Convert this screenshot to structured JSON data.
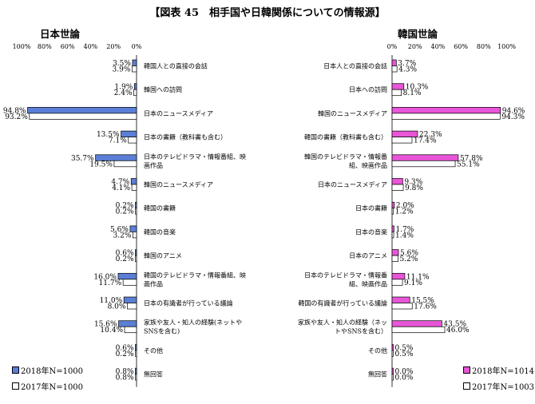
{
  "title": "【図表 45　相手国や日韓関係についての情報源】",
  "left_panel_title": "日本世論",
  "right_panel_title": "韓国世論",
  "tick_labels": [
    "100%",
    "80%",
    "60%",
    "40%",
    "20%",
    "0%"
  ],
  "right_tick_labels": [
    "0%",
    "20%",
    "40%",
    "60%",
    "80%",
    "100%"
  ],
  "legend": {
    "jp_2018": "2018年N=1000",
    "jp_2017": "2017年N=1000",
    "kr_2018": "2018年N=1014",
    "kr_2017": "2017年N=1003"
  },
  "colors": {
    "jp_2018": "#5b7fd6",
    "jp_2017": "#ffffff",
    "kr_2018": "#e855d8",
    "kr_2017": "#ffffff"
  },
  "chart_data": [
    {
      "type": "bar",
      "orientation": "horizontal-left",
      "title": "日本世論",
      "xlim": [
        0,
        100
      ],
      "categories": [
        [
          "韓国人との直接の会話"
        ],
        [
          "韓国への訪問"
        ],
        [
          "日本のニュースメディア"
        ],
        [
          "日本の書籍（教科書も含む）"
        ],
        [
          "日本のテレビドラマ・情報番組、映",
          "画作品"
        ],
        [
          "韓国のニュースメディア"
        ],
        [
          "韓国の書籍"
        ],
        [
          "韓国の音楽"
        ],
        [
          "韓国のアニメ"
        ],
        [
          "韓国のテレビドラマ・情報番組、映",
          "画作品"
        ],
        [
          "日本の有識者が行っている議論"
        ],
        [
          "家族や友人・知人の経験(ネットや",
          "SNSを含む)"
        ],
        [
          "その他"
        ],
        [
          "無回答"
        ]
      ],
      "series": [
        {
          "name": "2018年N=1000",
          "values": [
            3.5,
            1.9,
            94.8,
            13.5,
            35.7,
            4.7,
            0.2,
            5.6,
            0.6,
            16.0,
            11.0,
            15.6,
            0.6,
            0.8
          ]
        },
        {
          "name": "2017年N=1000",
          "values": [
            3.9,
            2.4,
            93.2,
            7.1,
            19.5,
            4.1,
            0.2,
            3.2,
            0.2,
            11.7,
            8.0,
            10.4,
            0.2,
            0.8
          ]
        }
      ]
    },
    {
      "type": "bar",
      "orientation": "horizontal-right",
      "title": "韓国世論",
      "xlim": [
        0,
        100
      ],
      "categories": [
        [
          "日本人との直接の会話"
        ],
        [
          "日本への訪問"
        ],
        [
          "韓国のニュースメディア"
        ],
        [
          "韓国の書籍（教科書も含む）"
        ],
        [
          "韓国のテレビドラマ・情報番",
          "組、映画作品"
        ],
        [
          "日本のニュースメディア"
        ],
        [
          "日本の書籍"
        ],
        [
          "日本の音楽"
        ],
        [
          "日本のアニメ"
        ],
        [
          "日本のテレビドラマ・情報番",
          "組、映画作品"
        ],
        [
          "韓国の有識者が行っている議論"
        ],
        [
          "家族や友人・知人の経験（ネッ",
          "トやSNSを含む）"
        ],
        [
          "その他"
        ],
        [
          "無回答"
        ]
      ],
      "series": [
        {
          "name": "2018年N=1014",
          "values": [
            3.7,
            10.3,
            94.6,
            22.3,
            57.8,
            9.3,
            2.0,
            1.7,
            5.6,
            11.1,
            15.5,
            43.5,
            0.5,
            0.0
          ]
        },
        {
          "name": "2017年N=1003",
          "values": [
            4.3,
            8.1,
            94.3,
            17.4,
            55.1,
            9.8,
            1.2,
            1.4,
            5.2,
            9.1,
            17.6,
            46.0,
            0.5,
            0.0
          ]
        }
      ]
    }
  ]
}
